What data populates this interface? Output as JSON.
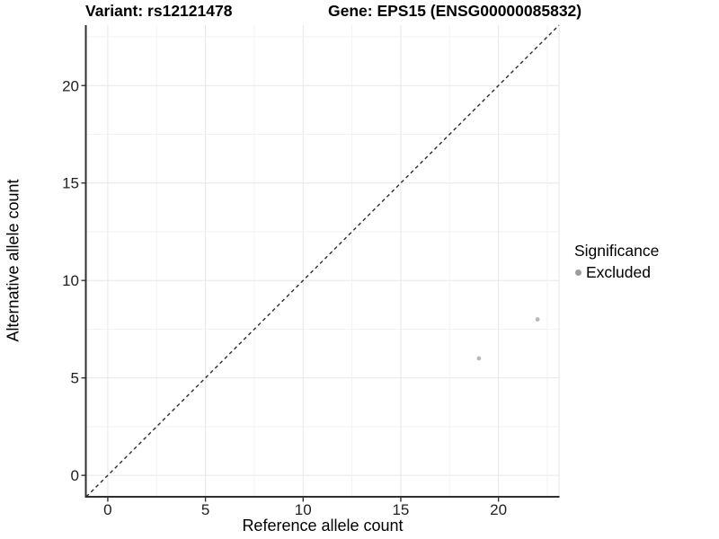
{
  "chart_data": {
    "type": "scatter",
    "title_left": "Variant: rs12121478",
    "title_right": "Gene: EPS15 (ENSG00000085832)",
    "xlabel": "Reference allele count",
    "ylabel": "Alternative allele count",
    "xlim": [
      -1.1,
      23.1
    ],
    "ylim": [
      -1.1,
      23.1
    ],
    "xticks": [
      0,
      5,
      10,
      15,
      20
    ],
    "yticks": [
      0,
      5,
      10,
      15,
      20
    ],
    "grid": true,
    "grid_minor_step": 2.5,
    "grid_max": 22.5,
    "identity_line": {
      "style": "dashed",
      "from": [
        -1.1,
        -1.1
      ],
      "to": [
        23.1,
        23.1
      ],
      "color": "#2b2b2b"
    },
    "series": [
      {
        "name": "Excluded",
        "color": "#b9b9b9",
        "points": [
          {
            "x": 19,
            "y": 6
          },
          {
            "x": 22,
            "y": 8
          }
        ]
      }
    ],
    "legend": {
      "position": "right",
      "title": "Significance",
      "items": [
        {
          "label": "Excluded",
          "color": "#9d9d9d"
        }
      ]
    },
    "colors": {
      "axis_line": "#2f2f2f",
      "tick_mark": "#333333",
      "tick_label": "#212121",
      "grid_major": "#e7e7e7",
      "grid_minor": "#f2f2f2",
      "panel_edge": "#e7e7e7"
    }
  }
}
